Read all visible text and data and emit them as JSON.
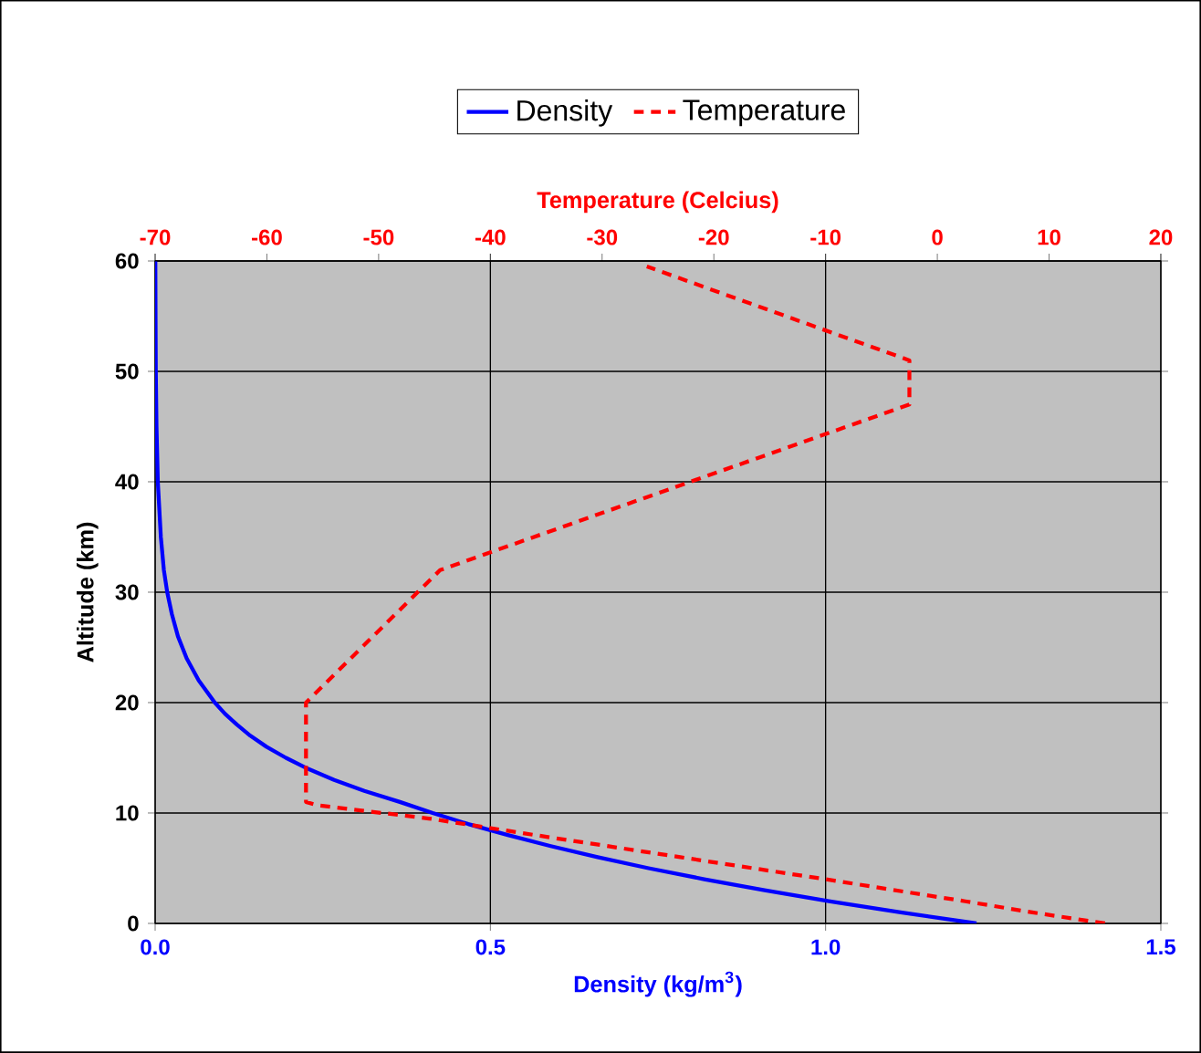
{
  "chart_data": {
    "type": "line",
    "xlabel": "Density (kg/m$^{3}$)",
    "ylabel": "Altitude (km)",
    "x2label": "Temperature (Celcius)",
    "xlim": [
      0,
      1.5
    ],
    "xticks": [
      {
        "value": 0,
        "label": "0.0"
      },
      {
        "value": 0.5,
        "label": "0.5"
      },
      {
        "value": 1,
        "label": "1.0"
      },
      {
        "value": 1.5,
        "label": "1.5"
      }
    ],
    "x2lim": [
      -70,
      20
    ],
    "x2ticks": [
      -70,
      -60,
      -50,
      -40,
      -30,
      -20,
      -10,
      0,
      10,
      20
    ],
    "ylim": [
      0,
      60
    ],
    "yticks": [
      0,
      10,
      20,
      30,
      40,
      50,
      60
    ],
    "grid": true,
    "legend": "top",
    "series": [
      {
        "name": "Density",
        "color": "#0000ff",
        "line_style": "solid",
        "x": [
          1.225,
          1.112,
          1.007,
          0.909,
          0.819,
          0.736,
          0.66,
          0.59,
          0.526,
          0.467,
          0.414,
          0.365,
          0.312,
          0.267,
          0.228,
          0.195,
          0.166,
          0.142,
          0.122,
          0.104,
          0.089,
          0.065,
          0.047,
          0.034,
          0.025,
          0.018,
          0.013,
          0.0085,
          0.004,
          0.002,
          0.001,
          0.0006,
          0.0003
        ],
        "values": [
          0,
          1,
          2,
          3,
          4,
          5,
          6,
          7,
          8,
          9,
          10,
          11,
          12,
          13,
          14,
          15,
          16,
          17,
          18,
          19,
          20,
          22,
          24,
          26,
          28,
          30,
          32,
          35,
          40,
          45,
          50,
          55,
          60
        ]
      },
      {
        "name": "Temperature",
        "color": "#ff0000",
        "line_style": "dashed",
        "axis": "x2",
        "x": [
          15,
          8.5,
          2.5,
          -10,
          -23,
          -36,
          -45.5,
          -55.5,
          -56.5,
          -56.5,
          -44.5,
          -2.5,
          -2.5,
          -26
        ],
        "values": [
          0,
          1,
          2,
          4,
          6,
          8,
          9.5,
          10.7,
          11,
          20,
          32,
          47,
          51,
          59.5
        ]
      }
    ]
  }
}
